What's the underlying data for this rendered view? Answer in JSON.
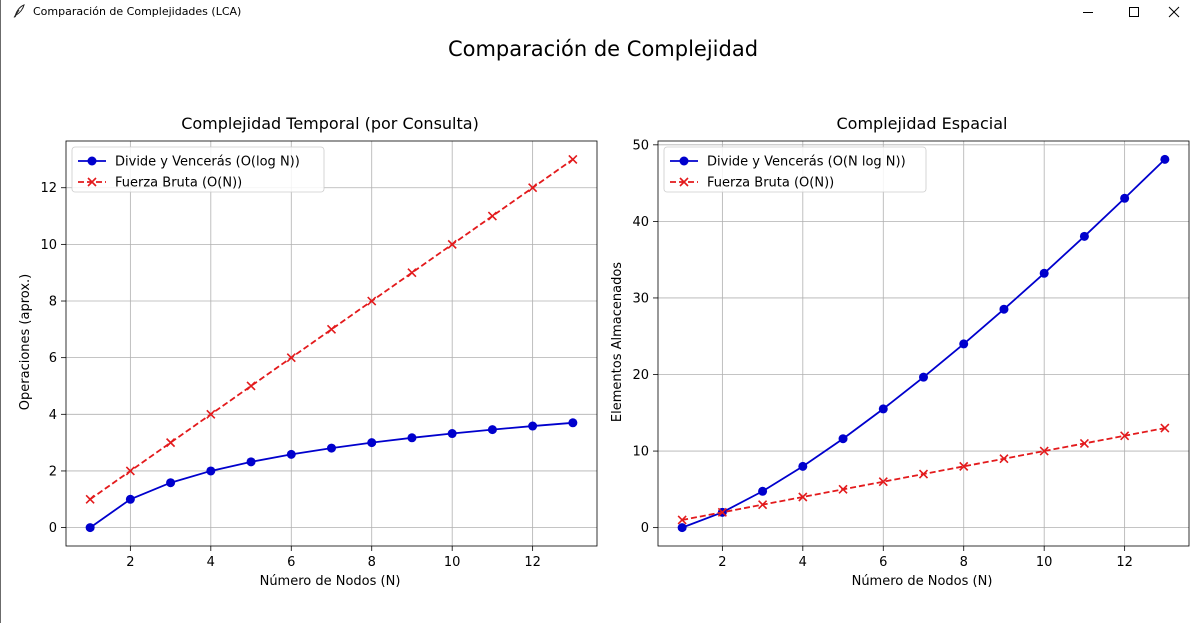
{
  "window": {
    "title": "Comparación de Complejidades (LCA)",
    "icon": "feather-icon",
    "controls": [
      "minimize-icon",
      "maximize-icon",
      "close-icon"
    ]
  },
  "figure": {
    "suptitle": "Comparación de Complejidad"
  },
  "chart_data": [
    {
      "type": "line",
      "title": "Complejidad Temporal (por Consulta)",
      "xlabel": "Número de Nodos (N)",
      "ylabel": "Operaciones (aprox.)",
      "x": [
        1,
        2,
        3,
        4,
        5,
        6,
        7,
        8,
        9,
        10,
        11,
        12,
        13
      ],
      "xlim": [
        0.4,
        13.6
      ],
      "ylim": [
        -0.65,
        13.65
      ],
      "xticks": [
        2,
        4,
        6,
        8,
        10,
        12
      ],
      "yticks": [
        0,
        2,
        4,
        6,
        8,
        10,
        12
      ],
      "grid": true,
      "legend": "top-left",
      "series": [
        {
          "name": "Divide y Vencerás (O(log N))",
          "color": "#0000cd",
          "style": "solid",
          "marker": "circle",
          "values": [
            0,
            1,
            1.585,
            2,
            2.322,
            2.585,
            2.807,
            3,
            3.17,
            3.322,
            3.459,
            3.585,
            3.7
          ]
        },
        {
          "name": "Fuerza Bruta (O(N))",
          "color": "#e31a1c",
          "style": "dashed",
          "marker": "x",
          "values": [
            1,
            2,
            3,
            4,
            5,
            6,
            7,
            8,
            9,
            10,
            11,
            12,
            13
          ]
        }
      ]
    },
    {
      "type": "line",
      "title": "Complejidad Espacial",
      "xlabel": "Número de Nodos (N)",
      "ylabel": "Elementos Almacenados",
      "x": [
        1,
        2,
        3,
        4,
        5,
        6,
        7,
        8,
        9,
        10,
        11,
        12,
        13
      ],
      "xlim": [
        0.4,
        13.6
      ],
      "ylim": [
        -2.4,
        50.5
      ],
      "xticks": [
        2,
        4,
        6,
        8,
        10,
        12
      ],
      "yticks": [
        0,
        10,
        20,
        30,
        40,
        50
      ],
      "grid": true,
      "legend": "top-left",
      "series": [
        {
          "name": "Divide y Vencerás (O(N log N))",
          "color": "#0000cd",
          "style": "solid",
          "marker": "circle",
          "values": [
            0,
            2,
            4.75,
            8,
            11.61,
            15.51,
            19.65,
            24,
            28.53,
            33.22,
            38.05,
            43.02,
            48.1
          ]
        },
        {
          "name": "Fuerza Bruta (O(N))",
          "color": "#e31a1c",
          "style": "dashed",
          "marker": "x",
          "values": [
            1,
            2,
            3,
            4,
            5,
            6,
            7,
            8,
            9,
            10,
            11,
            12,
            13
          ]
        }
      ]
    }
  ]
}
